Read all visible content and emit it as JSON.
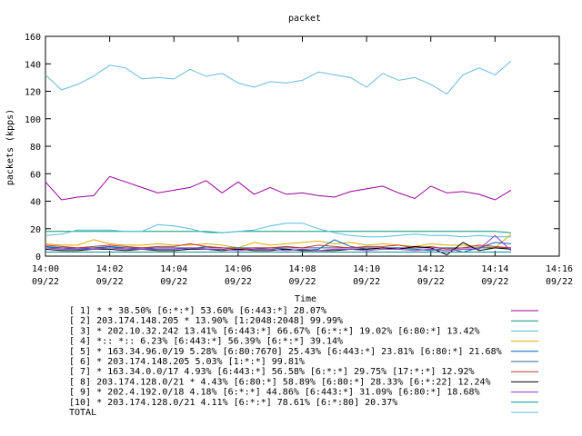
{
  "chart_data": {
    "type": "line",
    "title": "packet",
    "xlabel": "Time",
    "ylabel": "packets (kpps)",
    "ylim": [
      0,
      160
    ],
    "yticks": [
      "0",
      "20",
      "40",
      "60",
      "80",
      "100",
      "120",
      "140",
      "160"
    ],
    "x_time_range": [
      "14:00",
      "14:16"
    ],
    "xticks": [
      {
        "time": "14:00",
        "date": "09/22"
      },
      {
        "time": "14:02",
        "date": "09/22"
      },
      {
        "time": "14:04",
        "date": "09/22"
      },
      {
        "time": "14:06",
        "date": "09/22"
      },
      {
        "time": "14:08",
        "date": "09/22"
      },
      {
        "time": "14:10",
        "date": "09/22"
      },
      {
        "time": "14:12",
        "date": "09/22"
      },
      {
        "time": "14:14",
        "date": "09/22"
      },
      {
        "time": "14:16",
        "date": "09/22"
      }
    ],
    "x": [
      "14:00:00",
      "14:00:30",
      "14:01:00",
      "14:01:30",
      "14:02:00",
      "14:02:30",
      "14:03:00",
      "14:03:30",
      "14:04:00",
      "14:04:30",
      "14:05:00",
      "14:05:30",
      "14:06:00",
      "14:06:30",
      "14:07:00",
      "14:07:30",
      "14:08:00",
      "14:08:30",
      "14:09:00",
      "14:09:30",
      "14:10:00",
      "14:10:30",
      "14:11:00",
      "14:11:30",
      "14:12:00",
      "14:12:30",
      "14:13:00",
      "14:13:30",
      "14:14:00",
      "14:14:30"
    ],
    "grid": false,
    "legend_position": "bottom",
    "series": [
      {
        "name": "[ 1] * * 38.50% [6:*:*] 53.60% [6:443:*] 28.07%",
        "color": "#990099",
        "values": [
          54,
          41,
          43,
          44,
          58,
          54,
          50,
          46,
          48,
          50,
          55,
          46,
          54,
          45,
          50,
          45,
          46,
          44,
          43,
          47,
          49,
          51,
          46,
          42,
          51,
          46,
          47,
          45,
          41,
          48
        ]
      },
      {
        "name": "[ 2] 203.174.148.205 * 13.90% [1:2048:2048] 99.99%",
        "color": "#009977",
        "values": [
          18,
          18,
          18,
          18,
          18,
          18,
          18,
          18,
          18,
          18,
          18,
          17,
          18,
          18,
          18,
          18,
          18,
          18,
          18,
          18,
          18,
          18,
          18,
          18,
          18,
          18,
          18,
          18,
          18,
          17
        ]
      },
      {
        "name": "[ 3] * 202.10.32.242 13.41% [6:443:*] 66.67% [6:*:*] 19.02% [6:80:*] 13.42%",
        "color": "#55bbdd",
        "values": [
          15,
          16,
          19,
          19,
          19,
          18,
          18,
          23,
          22,
          20,
          17,
          17,
          18,
          19,
          22,
          24,
          24,
          20,
          17,
          15,
          14,
          14,
          15,
          16,
          15,
          15,
          14,
          15,
          14,
          14
        ]
      },
      {
        "name": "[ 4] *:: *:: 6.23% [6:443:*] 56.39% [6:*:*] 39.14%",
        "color": "#ddaa00",
        "values": [
          9,
          8,
          8,
          12,
          9,
          8,
          8,
          9,
          8,
          8,
          9,
          8,
          6,
          10,
          8,
          9,
          10,
          11,
          9,
          10,
          8,
          9,
          8,
          7,
          9,
          8,
          8,
          7,
          6,
          16
        ]
      },
      {
        "name": "[ 5] * 163.34.96.0/19 5.28% [6:80:7670] 25.43% [6:443:*] 23.81% [6:80:*] 21.68%",
        "color": "#0066bb",
        "values": [
          7,
          6,
          5,
          6,
          7,
          6,
          5,
          6,
          6,
          5,
          7,
          6,
          5,
          5,
          6,
          5,
          4,
          5,
          12,
          7,
          5,
          6,
          6,
          5,
          4,
          6,
          3,
          6,
          10,
          9
        ]
      },
      {
        "name": "[ 6] * 203.174.148.205 5.03% [1:*:*] 99.81%",
        "color": "#336699",
        "values": [
          6,
          6,
          6,
          6,
          6,
          6,
          6,
          6,
          6,
          6,
          6,
          6,
          6,
          6,
          6,
          6,
          6,
          6,
          6,
          6,
          6,
          6,
          6,
          6,
          6,
          6,
          6,
          6,
          6,
          6
        ]
      },
      {
        "name": "[ 7] * 163.34.0.0/17 4.93% [6:443:*] 56.58% [6:*:*] 29.75% [17:*:*] 12.92%",
        "color": "#cc3333",
        "values": [
          8,
          7,
          6,
          7,
          8,
          7,
          6,
          7,
          7,
          9,
          7,
          6,
          5,
          6,
          6,
          7,
          6,
          8,
          7,
          6,
          7,
          7,
          8,
          6,
          7,
          5,
          6,
          8,
          7,
          6
        ]
      },
      {
        "name": "[ 8] 203.174.128.0/21 * 4.43% [6:80:*] 58.89% [6:80:*] 28.33% [6:*:22] 12.24%",
        "color": "#000000",
        "values": [
          5,
          4,
          4,
          5,
          5,
          4,
          5,
          4,
          4,
          5,
          5,
          4,
          5,
          4,
          4,
          5,
          4,
          4,
          4,
          5,
          5,
          6,
          5,
          7,
          6,
          1,
          10,
          4,
          6,
          5
        ]
      },
      {
        "name": "[ 9] * 202.4.192.0/18 4.18% [6:*:*] 44.86% [6:443:*] 31.09% [6:80:*] 18.68%",
        "color": "#9933cc",
        "values": [
          6,
          5,
          5,
          5,
          6,
          5,
          5,
          5,
          5,
          6,
          5,
          5,
          4,
          5,
          5,
          4,
          5,
          4,
          5,
          5,
          4,
          5,
          5,
          4,
          5,
          4,
          5,
          5,
          15,
          4
        ]
      },
      {
        "name": "[10] * 203.174.128.0/21 4.11% [6:*:*] 78.61% [6:*:80] 20.37%",
        "color": "#009999",
        "values": [
          3,
          3,
          3,
          3,
          3,
          3,
          3,
          3,
          3,
          3,
          3,
          3,
          3,
          3,
          3,
          3,
          3,
          3,
          3,
          3,
          3,
          3,
          3,
          3,
          3,
          3,
          3,
          3,
          3,
          3
        ]
      },
      {
        "name": "TOTAL",
        "color": "#66bbdd",
        "values": [
          132,
          121,
          125,
          131,
          139,
          137,
          129,
          130,
          129,
          136,
          131,
          133,
          126,
          123,
          127,
          126,
          128,
          134,
          132,
          130,
          123,
          133,
          128,
          130,
          125,
          118,
          132,
          137,
          132,
          142
        ]
      }
    ]
  }
}
